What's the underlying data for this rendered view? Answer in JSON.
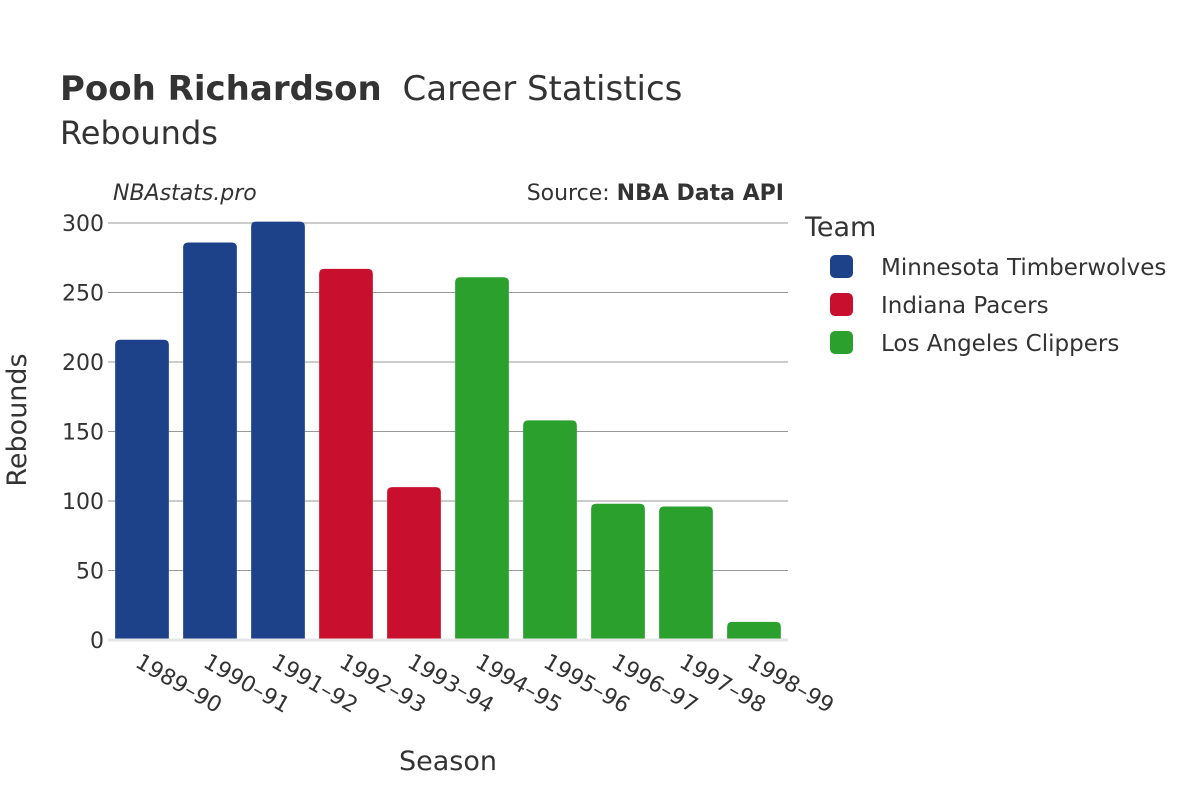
{
  "header": {
    "player_name": "Pooh Richardson",
    "title_rest": "Career Statistics",
    "subtitle": "Rebounds"
  },
  "credits": {
    "site": "NBAstats.pro",
    "source_prefix": "Source: ",
    "source_name": "NBA Data API"
  },
  "legend": {
    "title": "Team",
    "placement": "right",
    "entries": [
      {
        "label": "Minnesota Timberwolves",
        "color": "#1d428a"
      },
      {
        "label": "Indiana Pacers",
        "color": "#c8102e"
      },
      {
        "label": "Los Angeles Clippers",
        "color": "#2ca02c"
      }
    ]
  },
  "chart_data": {
    "type": "bar",
    "title": "Pooh Richardson Career Statistics",
    "subtitle": "Rebounds",
    "xlabel": "Season",
    "ylabel": "Rebounds",
    "ylim": [
      0,
      300
    ],
    "yticks": [
      0,
      50,
      100,
      150,
      200,
      250,
      300
    ],
    "grid": true,
    "categories": [
      "1989–90",
      "1990–91",
      "1991–92",
      "1992–93",
      "1993–94",
      "1994–95",
      "1995–96",
      "1996–97",
      "1997–98",
      "1998–99"
    ],
    "values": [
      216,
      286,
      301,
      267,
      110,
      261,
      158,
      98,
      96,
      13
    ],
    "teams": [
      "Minnesota Timberwolves",
      "Minnesota Timberwolves",
      "Minnesota Timberwolves",
      "Indiana Pacers",
      "Indiana Pacers",
      "Los Angeles Clippers",
      "Los Angeles Clippers",
      "Los Angeles Clippers",
      "Los Angeles Clippers",
      "Los Angeles Clippers"
    ],
    "colors": {
      "Minnesota Timberwolves": "#1d428a",
      "Indiana Pacers": "#c8102e",
      "Los Angeles Clippers": "#2ca02c"
    }
  }
}
